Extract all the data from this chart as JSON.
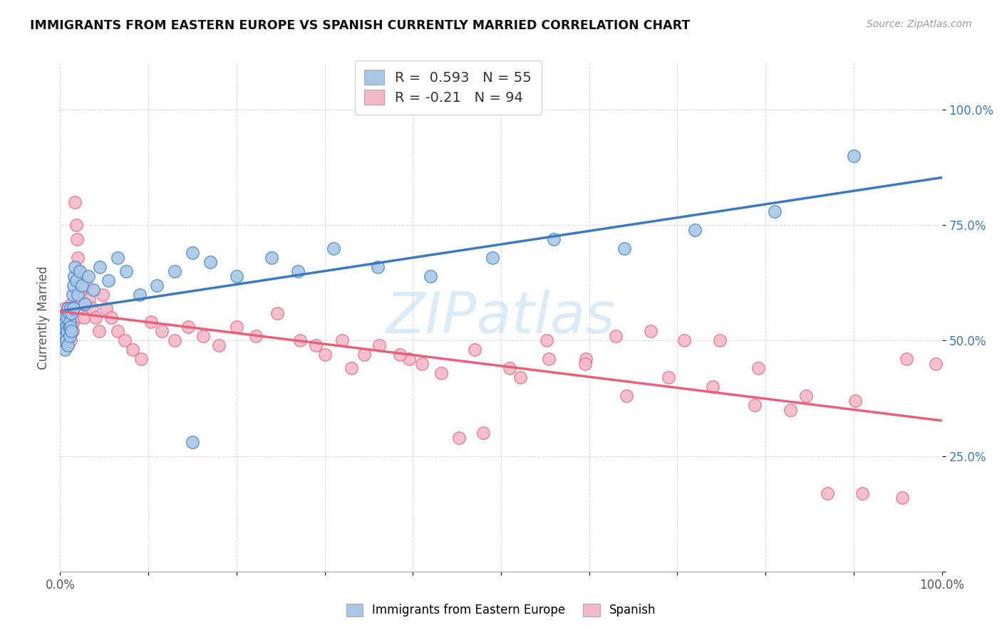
{
  "title": "IMMIGRANTS FROM EASTERN EUROPE VS SPANISH CURRENTLY MARRIED CORRELATION CHART",
  "source": "Source: ZipAtlas.com",
  "ylabel": "Currently Married",
  "legend_label1": "Immigrants from Eastern Europe",
  "legend_label2": "Spanish",
  "r1": 0.593,
  "n1": 55,
  "r2": -0.21,
  "n2": 94,
  "color_blue": "#a8c8e8",
  "color_pink": "#f4b8c8",
  "line_color_blue": "#3a7abf",
  "line_color_pink": "#e8607a",
  "watermark": "ZIPatlas",
  "blue_x": [
    0.002,
    0.003,
    0.004,
    0.005,
    0.005,
    0.006,
    0.006,
    0.007,
    0.007,
    0.008,
    0.008,
    0.009,
    0.009,
    0.01,
    0.01,
    0.011,
    0.011,
    0.012,
    0.012,
    0.013,
    0.013,
    0.014,
    0.015,
    0.015,
    0.016,
    0.017,
    0.018,
    0.02,
    0.022,
    0.025,
    0.028,
    0.032,
    0.038,
    0.045,
    0.055,
    0.065,
    0.075,
    0.09,
    0.11,
    0.13,
    0.15,
    0.17,
    0.15,
    0.2,
    0.24,
    0.27,
    0.31,
    0.36,
    0.42,
    0.49,
    0.56,
    0.64,
    0.72,
    0.81,
    0.9
  ],
  "blue_y": [
    0.52,
    0.5,
    0.53,
    0.48,
    0.55,
    0.51,
    0.54,
    0.5,
    0.53,
    0.52,
    0.55,
    0.49,
    0.57,
    0.53,
    0.56,
    0.51,
    0.54,
    0.53,
    0.57,
    0.52,
    0.56,
    0.6,
    0.57,
    0.62,
    0.64,
    0.66,
    0.63,
    0.6,
    0.65,
    0.62,
    0.58,
    0.64,
    0.61,
    0.66,
    0.63,
    0.68,
    0.65,
    0.6,
    0.62,
    0.65,
    0.69,
    0.67,
    0.28,
    0.64,
    0.68,
    0.65,
    0.7,
    0.66,
    0.64,
    0.68,
    0.72,
    0.7,
    0.74,
    0.78,
    0.9
  ],
  "pink_x": [
    0.001,
    0.002,
    0.003,
    0.004,
    0.004,
    0.005,
    0.005,
    0.006,
    0.006,
    0.007,
    0.007,
    0.008,
    0.008,
    0.009,
    0.009,
    0.01,
    0.01,
    0.011,
    0.011,
    0.012,
    0.012,
    0.013,
    0.013,
    0.014,
    0.014,
    0.015,
    0.015,
    0.016,
    0.017,
    0.018,
    0.019,
    0.02,
    0.021,
    0.022,
    0.023,
    0.025,
    0.027,
    0.03,
    0.033,
    0.036,
    0.04,
    0.044,
    0.048,
    0.052,
    0.058,
    0.065,
    0.073,
    0.082,
    0.092,
    0.103,
    0.115,
    0.13,
    0.145,
    0.162,
    0.18,
    0.2,
    0.222,
    0.246,
    0.272,
    0.3,
    0.33,
    0.362,
    0.396,
    0.432,
    0.47,
    0.51,
    0.552,
    0.596,
    0.642,
    0.69,
    0.74,
    0.792,
    0.846,
    0.902,
    0.96,
    0.29,
    0.345,
    0.41,
    0.48,
    0.554,
    0.63,
    0.708,
    0.788,
    0.87,
    0.955,
    0.32,
    0.385,
    0.452,
    0.522,
    0.595,
    0.67,
    0.748,
    0.828,
    0.91,
    0.993
  ],
  "pink_y": [
    0.54,
    0.53,
    0.51,
    0.55,
    0.5,
    0.53,
    0.57,
    0.52,
    0.56,
    0.5,
    0.54,
    0.52,
    0.55,
    0.49,
    0.53,
    0.51,
    0.55,
    0.54,
    0.52,
    0.56,
    0.5,
    0.54,
    0.58,
    0.52,
    0.56,
    0.54,
    0.57,
    0.55,
    0.8,
    0.75,
    0.72,
    0.68,
    0.65,
    0.62,
    0.6,
    0.58,
    0.55,
    0.62,
    0.59,
    0.57,
    0.55,
    0.52,
    0.6,
    0.57,
    0.55,
    0.52,
    0.5,
    0.48,
    0.46,
    0.54,
    0.52,
    0.5,
    0.53,
    0.51,
    0.49,
    0.53,
    0.51,
    0.56,
    0.5,
    0.47,
    0.44,
    0.49,
    0.46,
    0.43,
    0.48,
    0.44,
    0.5,
    0.46,
    0.38,
    0.42,
    0.4,
    0.44,
    0.38,
    0.37,
    0.46,
    0.49,
    0.47,
    0.45,
    0.3,
    0.46,
    0.51,
    0.5,
    0.36,
    0.17,
    0.16,
    0.5,
    0.47,
    0.29,
    0.42,
    0.45,
    0.52,
    0.5,
    0.35,
    0.17,
    0.45
  ]
}
